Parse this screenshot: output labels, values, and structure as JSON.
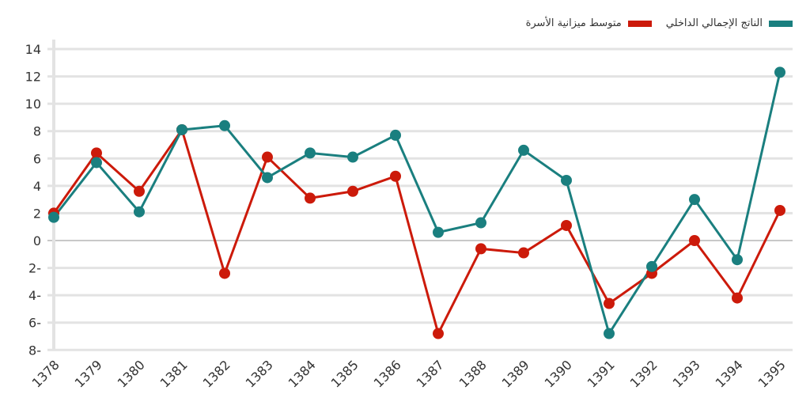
{
  "chart_data": {
    "type": "line",
    "title": "",
    "xlabel": "",
    "ylabel": "",
    "ylim": [
      -8,
      14
    ],
    "grid": true,
    "legend_position": "top-right",
    "x": [
      "1378",
      "1379",
      "1380",
      "1381",
      "1382",
      "1383",
      "1384",
      "1385",
      "1386",
      "1387",
      "1388",
      "1389",
      "1390",
      "1391",
      "1392",
      "1393",
      "1394",
      "1395"
    ],
    "y_ticks": [
      14,
      12,
      10,
      8,
      6,
      4,
      2,
      0,
      -2,
      -4,
      -6,
      -8
    ],
    "y_tick_labels": [
      "14",
      "12",
      "10",
      "8",
      "6",
      "4",
      "2",
      "0",
      "2-",
      "4-",
      "6-",
      "8-"
    ],
    "series": [
      {
        "name": "الناتج الإجمالي الداخلي",
        "color": "#1a7f7f",
        "values": [
          1.7,
          5.7,
          2.1,
          8.1,
          8.4,
          4.6,
          6.4,
          6.1,
          7.7,
          0.6,
          1.3,
          6.6,
          4.4,
          -6.8,
          -1.9,
          3.0,
          -1.4,
          12.3
        ]
      },
      {
        "name": "متوسط ميزانية الأسرة",
        "color": "#cc1a0a",
        "values": [
          2.0,
          6.4,
          3.6,
          8.1,
          -2.4,
          6.1,
          3.1,
          3.6,
          4.7,
          -6.8,
          -0.6,
          -0.9,
          1.1,
          -4.6,
          -2.4,
          0.0,
          -4.2,
          2.2
        ]
      }
    ]
  }
}
